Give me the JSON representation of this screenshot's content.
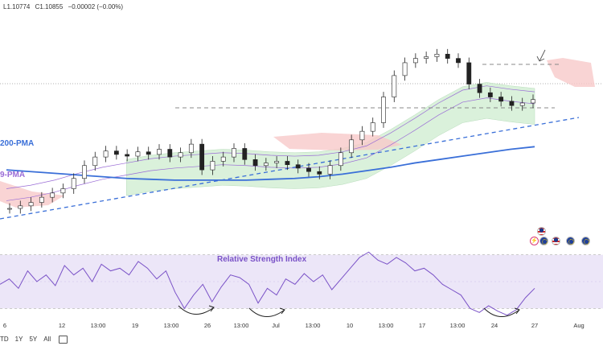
{
  "ohlc_header": {
    "low": "L1.10774",
    "close": "C1.10855",
    "change": "−0.00002 (−0.00%)"
  },
  "labels": {
    "pma200": "200-PMA",
    "pma50": "9-PMA",
    "rsi_title": "Relative Strength Index"
  },
  "timeframes": [
    "TD",
    "1Y",
    "5Y",
    "All"
  ],
  "icons": {
    "calendar": "calendar-icon",
    "flag_us": "us-flag-icon",
    "flag_eu": "eu-flag-icon",
    "lightning": "lightning-icon"
  },
  "colors": {
    "up": "#1a1a1a",
    "down": "#1a1a1a",
    "pma200": "#3a6fd8",
    "pma50": "#9a6cd6",
    "ma_thin": "#9a6cd6",
    "cloud_green": "#cdeccf",
    "cloud_red": "#f7c9c9",
    "trend_dashed": "#3a6fd8",
    "resistance": "#888888",
    "rsi_line": "#7a52c7",
    "rsi_band": "#ece6f8"
  },
  "chart_data": [
    {
      "type": "candlestick",
      "x_ticks": [
        "6",
        "12",
        "13:00",
        "19",
        "13:00",
        "26",
        "13:00",
        "Jul",
        "13:00",
        "10",
        "13:00",
        "17",
        "13:00",
        "24",
        "27",
        "Aug"
      ],
      "ylim": [
        1.085,
        1.108
      ],
      "close_series": [
        1.0865,
        1.0868,
        1.0872,
        1.0878,
        1.0883,
        1.0888,
        1.09,
        1.0915,
        1.0925,
        1.0932,
        1.0928,
        1.0926,
        1.0931,
        1.0928,
        1.0934,
        1.0925,
        1.093,
        1.094,
        1.091,
        1.092,
        1.0925,
        1.0935,
        1.0922,
        1.0915,
        1.0918,
        1.092,
        1.0916,
        1.0912,
        1.0908,
        1.0905,
        1.0915,
        1.093,
        1.0945,
        1.0955,
        1.0965,
        1.0995,
        1.102,
        1.1035,
        1.104,
        1.1042,
        1.1045,
        1.104,
        1.1035,
        1.101,
        1.1,
        1.0995,
        1.099,
        1.0985,
        1.0988,
        1.0992
      ],
      "series": [
        {
          "name": "200-PMA",
          "values": [
            1.091,
            1.0908,
            1.0906,
            1.0904,
            1.0902,
            1.09,
            1.0899,
            1.0898,
            1.0898,
            1.0898,
            1.0898,
            1.0899,
            1.09,
            1.0902,
            1.0905,
            1.0909,
            1.0913,
            1.0918,
            1.0922,
            1.0926,
            1.093,
            1.0934,
            1.0937
          ]
        },
        {
          "name": "9-PMA",
          "values": [
            1.088,
            1.0884,
            1.089,
            1.0898,
            1.0905,
            1.091,
            1.0915,
            1.0918,
            1.092,
            1.0922,
            1.0921,
            1.0919,
            1.0918,
            1.0919,
            1.0923,
            1.093,
            1.0945,
            1.0962,
            1.098,
            1.0995,
            1.1,
            1.0996,
            1.0993
          ]
        }
      ],
      "resistance_levels": [
        1.0942,
        1.1012
      ],
      "trendline": {
        "from": [
          0,
          1.0862
        ],
        "to": [
          1,
          1.0948
        ]
      }
    },
    {
      "type": "line",
      "title": "Relative Strength Index",
      "ylim": [
        20,
        80
      ],
      "band": [
        30,
        70
      ],
      "values": [
        48,
        52,
        45,
        58,
        50,
        55,
        47,
        62,
        55,
        60,
        50,
        63,
        58,
        60,
        55,
        65,
        60,
        52,
        58,
        42,
        30,
        40,
        48,
        35,
        46,
        55,
        53,
        48,
        34,
        45,
        40,
        52,
        48,
        56,
        50,
        55,
        44,
        52,
        60,
        68,
        72,
        66,
        63,
        68,
        64,
        58,
        60,
        55,
        48,
        44,
        40,
        30,
        27,
        32,
        28,
        25,
        29,
        38,
        45
      ]
    }
  ]
}
